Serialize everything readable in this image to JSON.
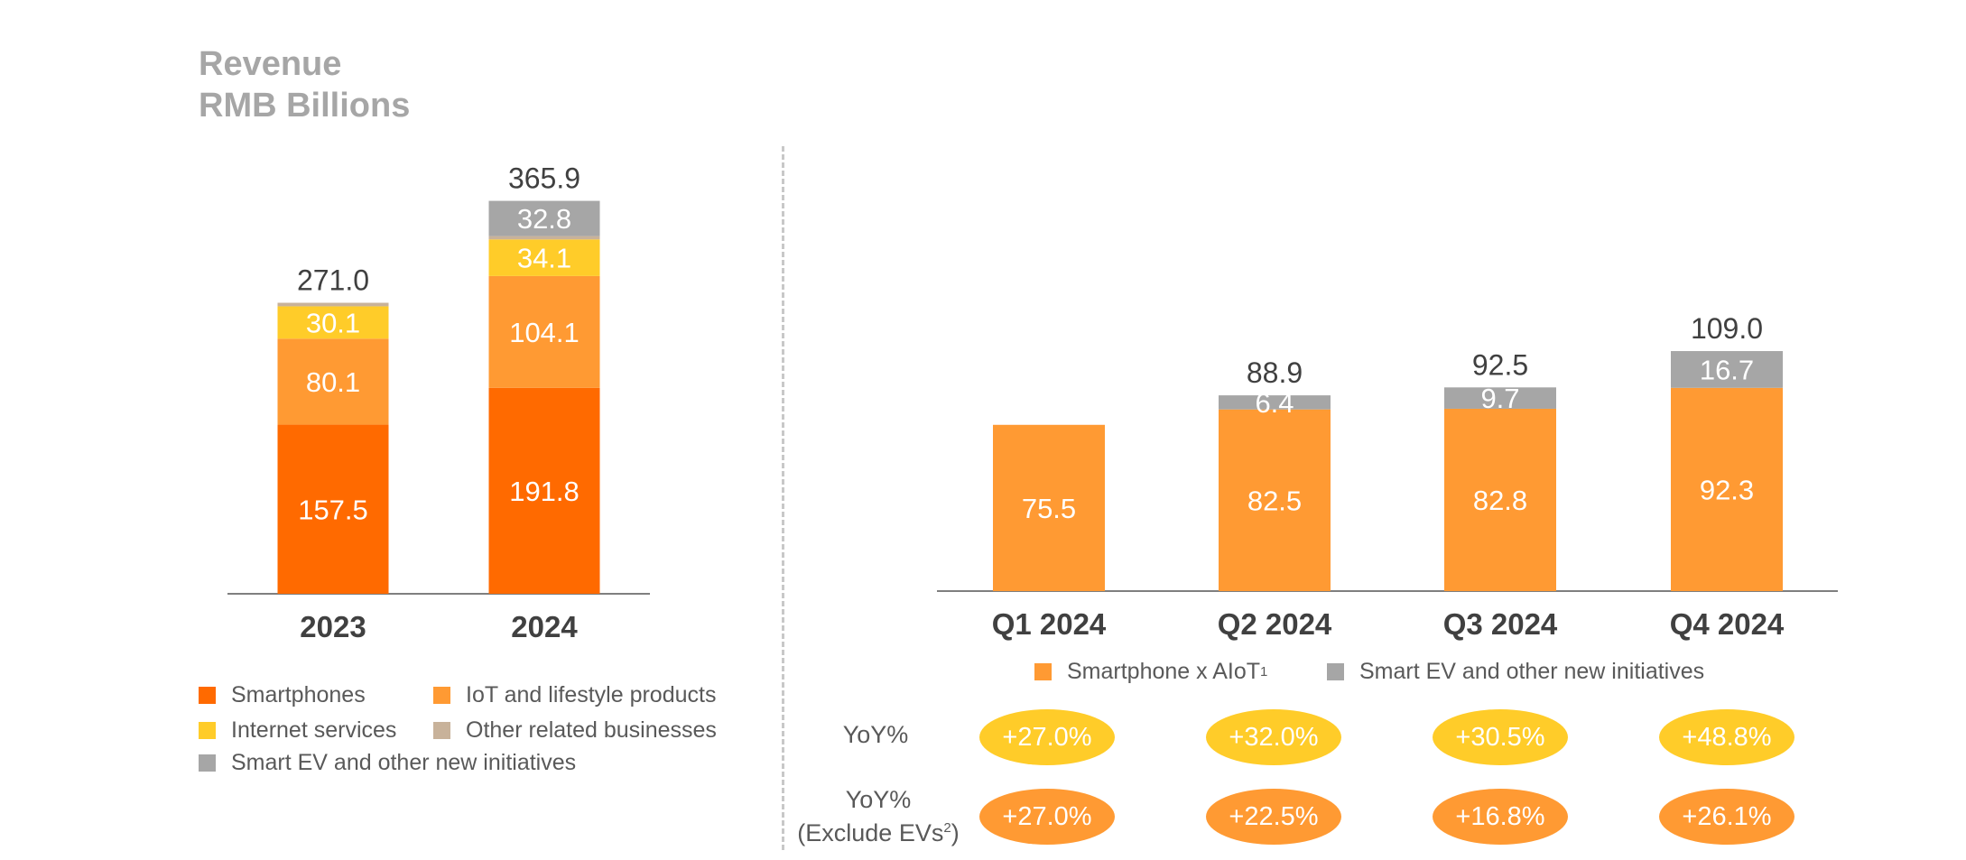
{
  "title": {
    "line1": "Revenue",
    "line2": "RMB Billions"
  },
  "colors": {
    "smartphones": "#ff6a00",
    "iot": "#ff9a33",
    "internet": "#ffcc29",
    "other": "#c8b29a",
    "ev": "#a6a6a6",
    "axis": "#7f7f7f",
    "yoy_pill": "#ffcc29",
    "yoy_ex_pill": "#ff9a33"
  },
  "chart_data": [
    {
      "type": "bar",
      "stacked": true,
      "categories": [
        "2023",
        "2024"
      ],
      "totals": [
        271.0,
        365.9
      ],
      "total_labels": [
        "271.0",
        "365.9"
      ],
      "series": [
        {
          "name": "Smartphones",
          "key": "smartphones",
          "values": [
            157.5,
            191.8
          ],
          "labels": [
            "157.5",
            "191.8"
          ]
        },
        {
          "name": "IoT and lifestyle products",
          "key": "iot",
          "values": [
            80.1,
            104.1
          ],
          "labels": [
            "80.1",
            "104.1"
          ]
        },
        {
          "name": "Internet services",
          "key": "internet",
          "values": [
            30.1,
            34.1
          ],
          "labels": [
            "30.1",
            "34.1"
          ]
        },
        {
          "name": "Other related businesses",
          "key": "other",
          "values": [
            3.3,
            3.1
          ],
          "labels": [
            "",
            ""
          ]
        },
        {
          "name": "Smart EV and other new initiatives",
          "key": "ev",
          "values": [
            0,
            32.8
          ],
          "labels": [
            "",
            "32.8"
          ]
        }
      ],
      "legend_position": "bottom"
    },
    {
      "type": "bar",
      "stacked": true,
      "categories": [
        "Q1 2024",
        "Q2 2024",
        "Q3 2024",
        "Q4 2024"
      ],
      "totals": [
        75.5,
        88.9,
        92.5,
        109.0
      ],
      "total_labels": [
        "",
        "88.9",
        "92.5",
        "109.0"
      ],
      "series": [
        {
          "name": "Smartphone x AIoT",
          "key": "iot",
          "values": [
            75.5,
            82.5,
            82.8,
            92.3
          ],
          "labels": [
            "75.5",
            "82.5",
            "82.8",
            "92.3"
          ]
        },
        {
          "name": "Smart EV and other new initiatives",
          "key": "ev",
          "values": [
            0,
            6.4,
            9.7,
            16.7
          ],
          "labels": [
            "",
            "6.4",
            "9.7",
            "16.7"
          ]
        }
      ],
      "legend_position": "bottom"
    }
  ],
  "legend_left": [
    {
      "label": "Smartphones",
      "key": "smartphones"
    },
    {
      "label": "IoT and lifestyle products",
      "key": "iot"
    },
    {
      "label": "Internet services",
      "key": "internet"
    },
    {
      "label": "Other related businesses",
      "key": "other"
    },
    {
      "label": "Smart EV and other new initiatives",
      "key": "ev"
    }
  ],
  "legend_right": [
    {
      "label": "Smartphone x AIoT",
      "sup": "1",
      "key": "iot"
    },
    {
      "label": "Smart EV and other new initiatives",
      "sup": "",
      "key": "ev"
    }
  ],
  "yoy": {
    "label": "YoY%",
    "values": [
      "+27.0%",
      "+32.0%",
      "+30.5%",
      "+48.8%"
    ]
  },
  "yoy_ex": {
    "label_line1": "YoY%",
    "label_line2": "(Exclude EVs",
    "label_sup": "2",
    "label_close": ")",
    "values": [
      "+27.0%",
      "+22.5%",
      "+16.8%",
      "+26.1%"
    ]
  }
}
